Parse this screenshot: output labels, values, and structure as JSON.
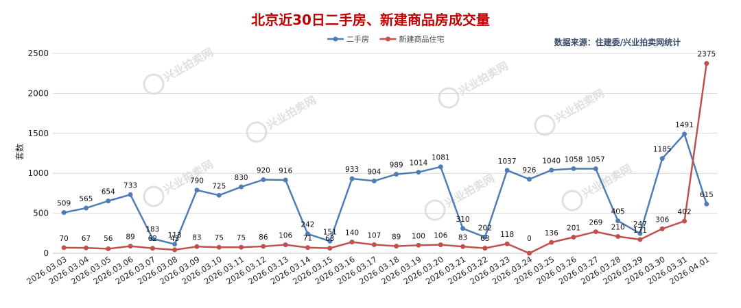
{
  "chart_data": {
    "type": "line",
    "title": "北京近30日二手房、新建商品房成交量",
    "source": "数据来源：住建委/兴业拍卖网统计",
    "ylabel": "套数",
    "ylim": [
      0,
      2500
    ],
    "yticks": [
      0,
      500,
      1000,
      1500,
      2000,
      2500
    ],
    "grid": true,
    "legend_position": "top-center",
    "watermark": "兴业拍卖网",
    "categories": [
      "2026.03.03",
      "2026.03.04",
      "2026.03.05",
      "2026.03.06",
      "2026.03.07",
      "2026.03.08",
      "2026.03.09",
      "2026.03.10",
      "2026.03.11",
      "2026.03.12",
      "2026.03.13",
      "2026.03.14",
      "2026.03.15",
      "2026.03.16",
      "2026.03.17",
      "2026.03.18",
      "2026.03.19",
      "2026.03.20",
      "2026.03.21",
      "2026.03.22",
      "2026.03.23",
      "2026.03.24",
      "2026.03.25",
      "2026.03.26",
      "2026.03.27",
      "2026.03.28",
      "2026.03.29",
      "2026.03.30",
      "2026.03.31",
      "2026.04.01"
    ],
    "series": [
      {
        "name": "二手房",
        "color": "#4f7cb5",
        "values": [
          509,
          565,
          654,
          733,
          183,
          113,
          790,
          725,
          830,
          920,
          916,
          242,
          151,
          933,
          904,
          989,
          1014,
          1081,
          310,
          202,
          1037,
          926,
          1040,
          1058,
          1057,
          405,
          247,
          1185,
          1491,
          615
        ]
      },
      {
        "name": "新建商品住宅",
        "color": "#c0504d",
        "values": [
          70,
          67,
          56,
          89,
          62,
          43,
          83,
          75,
          75,
          86,
          106,
          71,
          63,
          140,
          107,
          89,
          100,
          106,
          83,
          63,
          118,
          0,
          136,
          201,
          269,
          210,
          171,
          306,
          402,
          2375
        ]
      }
    ]
  }
}
